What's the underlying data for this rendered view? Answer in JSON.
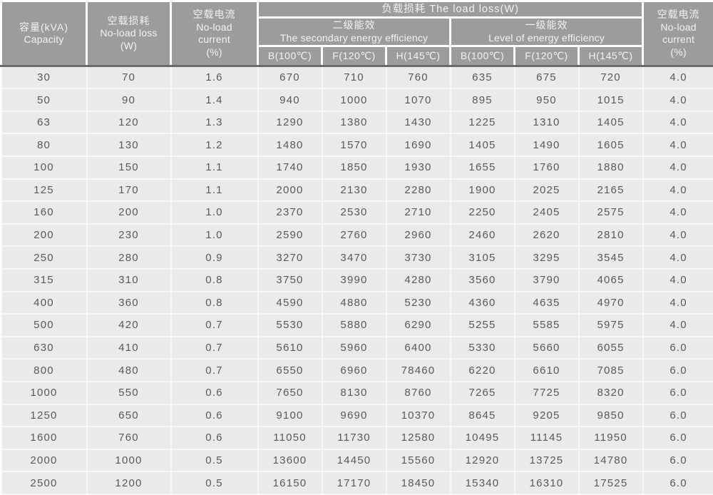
{
  "title": "Transformer load loss specification table",
  "colors": {
    "header_bg": "#9c9c9c",
    "header_text": "#f2f2f2",
    "header_divider": "#6a6a6a",
    "row_bg": "#eaeaea",
    "row_text": "#595959",
    "grid_line": "#f7f7f7"
  },
  "table": {
    "header": {
      "col_capacity": {
        "line1": "容量(kVA)",
        "line2": "Capacity"
      },
      "col_no_load_loss": {
        "line1": "空载损耗",
        "line2": "No-load loss",
        "line3": "(W)"
      },
      "col_no_load_current": {
        "line1": "空载电流",
        "line2": "No-load",
        "line3": "current",
        "line4": "(%)"
      },
      "group_load_loss": "负载损耗 The load loss(W)",
      "group_secondary": {
        "line1": "二级能效",
        "line2": "The secondary energy efficiency"
      },
      "group_first_level": {
        "line1": "一级能效",
        "line2": "Level of energy efficiency"
      },
      "sub_b100": "B(100℃)",
      "sub_f120": "F(120℃)",
      "sub_h145": "H(145℃)"
    },
    "column_keys": [
      "capacity",
      "no-load-loss",
      "no-load-current",
      "secondary-b100",
      "secondary-f120",
      "secondary-h145",
      "first-level-b100",
      "first-level-f120",
      "first-level-h145",
      "no-load-current-right"
    ],
    "rows": [
      [
        "30",
        "70",
        "1.6",
        "670",
        "710",
        "760",
        "635",
        "675",
        "720",
        "4.0"
      ],
      [
        "50",
        "90",
        "1.4",
        "940",
        "1000",
        "1070",
        "895",
        "950",
        "1015",
        "4.0"
      ],
      [
        "63",
        "120",
        "1.3",
        "1290",
        "1380",
        "1430",
        "1225",
        "1310",
        "1405",
        "4.0"
      ],
      [
        "80",
        "130",
        "1.2",
        "1480",
        "1570",
        "1690",
        "1405",
        "1490",
        "1605",
        "4.0"
      ],
      [
        "100",
        "150",
        "1.1",
        "1740",
        "1850",
        "1930",
        "1655",
        "1760",
        "1880",
        "4.0"
      ],
      [
        "125",
        "170",
        "1.1",
        "2000",
        "2130",
        "2280",
        "1900",
        "2025",
        "2165",
        "4.0"
      ],
      [
        "160",
        "200",
        "1.0",
        "2370",
        "2530",
        "2710",
        "2250",
        "2405",
        "2575",
        "4.0"
      ],
      [
        "200",
        "230",
        "1.0",
        "2590",
        "2760",
        "2960",
        "2460",
        "2620",
        "2810",
        "4.0"
      ],
      [
        "250",
        "280",
        "0.9",
        "3270",
        "3470",
        "3730",
        "3105",
        "3295",
        "3545",
        "4.0"
      ],
      [
        "315",
        "310",
        "0.8",
        "3750",
        "3990",
        "4280",
        "3560",
        "3790",
        "4065",
        "4.0"
      ],
      [
        "400",
        "360",
        "0.8",
        "4590",
        "4880",
        "5230",
        "4360",
        "4635",
        "4970",
        "4.0"
      ],
      [
        "500",
        "420",
        "0.7",
        "5530",
        "5880",
        "6290",
        "5255",
        "5585",
        "5975",
        "4.0"
      ],
      [
        "630",
        "410",
        "0.7",
        "5610",
        "5960",
        "6400",
        "5330",
        "5660",
        "6055",
        "6.0"
      ],
      [
        "800",
        "480",
        "0.7",
        "6550",
        "6960",
        "78460",
        "6220",
        "6610",
        "7085",
        "6.0"
      ],
      [
        "1000",
        "550",
        "0.6",
        "7650",
        "8130",
        "8760",
        "7265",
        "7725",
        "8320",
        "6.0"
      ],
      [
        "1250",
        "650",
        "0.6",
        "9100",
        "9690",
        "10370",
        "8645",
        "9205",
        "9850",
        "6.0"
      ],
      [
        "1600",
        "760",
        "0.6",
        "11050",
        "11730",
        "12580",
        "10495",
        "11145",
        "11950",
        "6.0"
      ],
      [
        "2000",
        "1000",
        "0.5",
        "13600",
        "14450",
        "15560",
        "12920",
        "13725",
        "14780",
        "6.0"
      ],
      [
        "2500",
        "1200",
        "0.5",
        "16150",
        "17170",
        "18450",
        "15340",
        "16310",
        "17525",
        "6.0"
      ]
    ]
  }
}
